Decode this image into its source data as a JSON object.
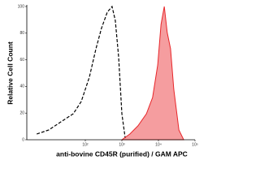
{
  "chart_data": {
    "type": "histogram-overlay",
    "y_label": "Relative Cell Count",
    "x_label": "anti-bovine CD45R (purified) / GAM APC",
    "xlim": [
      0.4,
      5.0
    ],
    "xticks": [
      {
        "value": 2,
        "label": "10²"
      },
      {
        "value": 3,
        "label": "10³"
      },
      {
        "value": 4,
        "label": "10⁴"
      },
      {
        "value": 5,
        "label": "10⁵"
      }
    ],
    "ylim": [
      0,
      100
    ],
    "yticks": [
      0,
      20,
      40,
      60,
      80,
      100
    ],
    "series": [
      {
        "color": "#000000",
        "style": "dashed",
        "x": [
          0.67,
          1.0,
          1.33,
          1.67,
          1.89,
          2.11,
          2.29,
          2.44,
          2.6,
          2.73,
          2.82,
          2.91,
          3.0,
          3.09
        ],
        "values": [
          4.3,
          7.3,
          13.4,
          19.5,
          28.7,
          47,
          68.3,
          83.5,
          95.7,
          100,
          89.6,
          62.2,
          19.5,
          1.2
        ]
      },
      {
        "color": "#e8262a",
        "style": "filled",
        "x": [
          3.0,
          3.22,
          3.44,
          3.67,
          3.84,
          3.98,
          4.07,
          4.16,
          4.24,
          4.33,
          4.42,
          4.56,
          4.69
        ],
        "values": [
          0,
          4.3,
          10.4,
          19.5,
          31.7,
          56.1,
          86.6,
          100,
          80.5,
          68.3,
          37.8,
          7.3,
          0
        ]
      }
    ]
  }
}
